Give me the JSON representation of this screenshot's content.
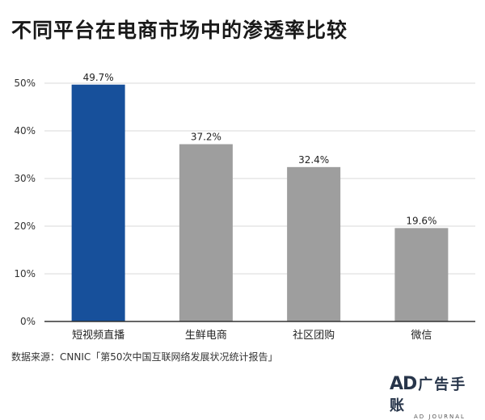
{
  "title": "不同平台在电商市场中的渗透率比较",
  "source": "数据来源：CNNIC「第50次中国互联网络发展状况统计报告」",
  "watermark": {
    "latin": "AD",
    "chinese": "广告手账",
    "sub": "AD JOURNAL"
  },
  "colors": {
    "highlight": "#17509b",
    "bar": "#9e9e9e",
    "grid": "#d9d9d9",
    "axis": "#333333"
  },
  "chart_data": {
    "type": "bar",
    "title": "不同平台在电商市场中的渗透率比较",
    "categories": [
      "短视频直播",
      "生鲜电商",
      "社区团购",
      "微信"
    ],
    "values": [
      49.7,
      37.2,
      32.4,
      19.6
    ],
    "value_labels": [
      "49.7%",
      "37.2%",
      "32.4%",
      "19.6%"
    ],
    "highlight_index": 0,
    "ylim": [
      0,
      50
    ],
    "yticks": [
      0,
      10,
      20,
      30,
      40,
      50
    ],
    "ytick_labels": [
      "0%",
      "10%",
      "20%",
      "30%",
      "40%",
      "50%"
    ],
    "grid": true,
    "xlabel": "",
    "ylabel": ""
  }
}
